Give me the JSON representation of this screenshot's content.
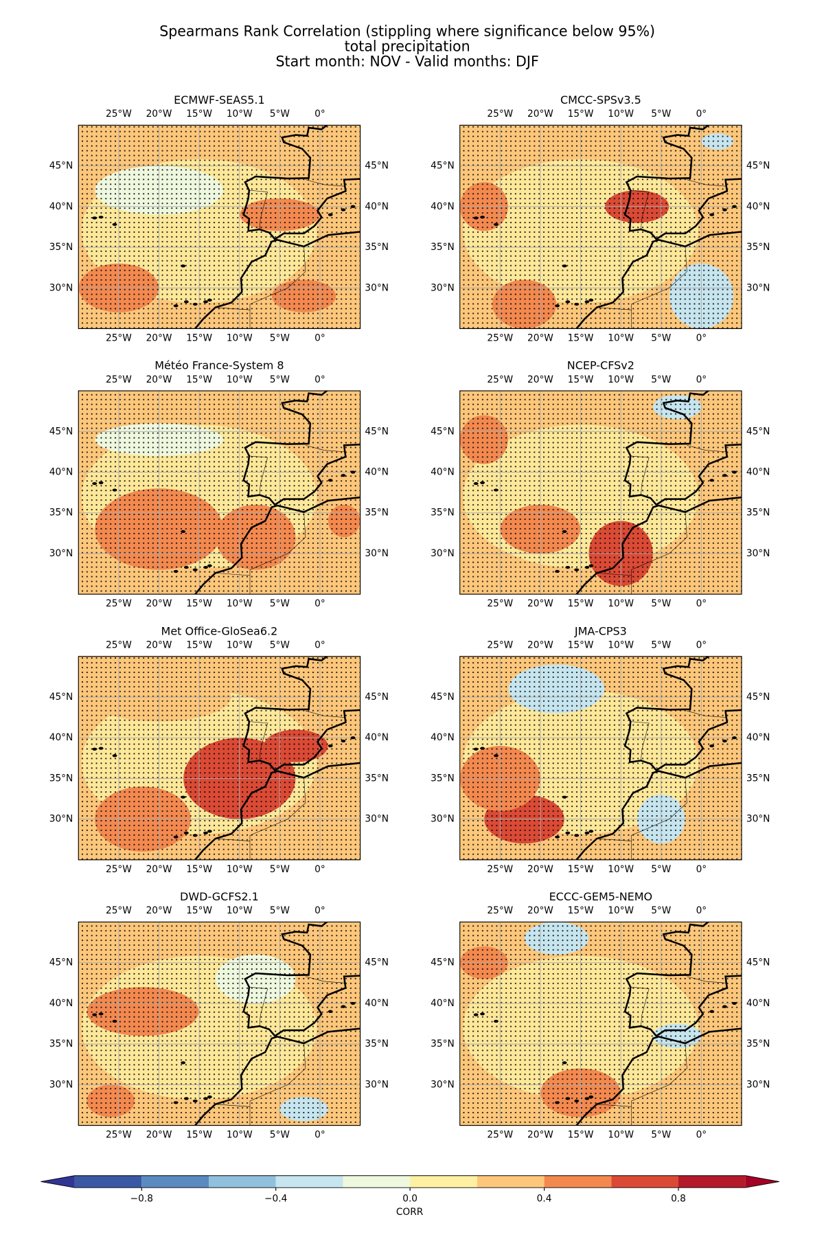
{
  "title": [
    "Spearmans Rank Correlation (stippling where significance below 95%)",
    "total precipitation",
    "Start month: NOV - Valid months: DJF"
  ],
  "panels": [
    {
      "title": "ECMWF-SEAS5.1"
    },
    {
      "title": "CMCC-SPSv3.5"
    },
    {
      "title": "Météo France-System 8"
    },
    {
      "title": "NCEP-CFSv2"
    },
    {
      "title": "Met Office-GloSea6.2"
    },
    {
      "title": "JMA-CPS3"
    },
    {
      "title": "DWD-GCFS2.1"
    },
    {
      "title": "ECCC-GEM5-NEMO"
    }
  ],
  "xlim": [
    -30,
    5
  ],
  "ylim": [
    25,
    50
  ],
  "xticks": [
    {
      "value": -25,
      "label": "25°W"
    },
    {
      "value": -20,
      "label": "20°W"
    },
    {
      "value": -15,
      "label": "15°W"
    },
    {
      "value": -10,
      "label": "10°W"
    },
    {
      "value": -5,
      "label": "5°W"
    },
    {
      "value": 0,
      "label": "0°"
    }
  ],
  "yticks": [
    {
      "value": 30,
      "label": "30°N"
    },
    {
      "value": 35,
      "label": "35°N"
    },
    {
      "value": 40,
      "label": "40°N"
    },
    {
      "value": 45,
      "label": "45°N"
    }
  ],
  "colorbar": {
    "label": "CORR",
    "levels": [
      -1,
      -0.8,
      -0.6,
      -0.4,
      -0.2,
      0,
      0.2,
      0.4,
      0.6,
      0.8,
      1
    ],
    "colors": [
      "#3b58a5",
      "#5b8ac0",
      "#90c0dc",
      "#c6e5ef",
      "#eef8df",
      "#fdf0a2",
      "#fdc77b",
      "#f3894f",
      "#db4a35",
      "#b41a2a"
    ],
    "under_color": "#313695",
    "over_color": "#a50026",
    "ticks": [
      {
        "value": -0.8,
        "label": "−0.8"
      },
      {
        "value": -0.4,
        "label": "−0.4"
      },
      {
        "value": 0,
        "label": "0.0"
      },
      {
        "value": 0.4,
        "label": "0.4"
      },
      {
        "value": 0.8,
        "label": "0.8"
      }
    ]
  }
}
